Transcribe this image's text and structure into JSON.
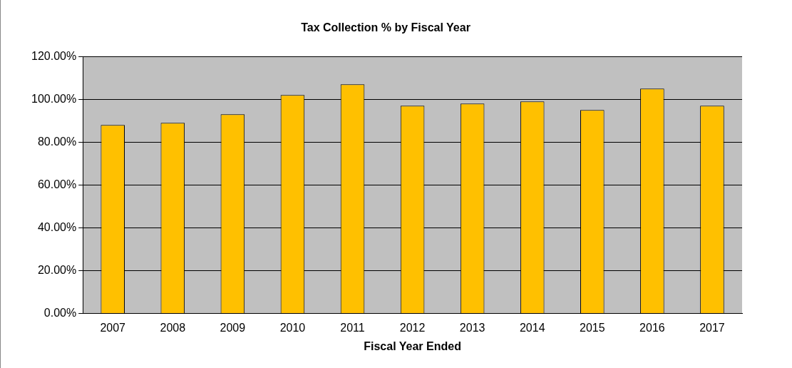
{
  "chart_data": {
    "type": "bar",
    "title": "Tax Collection % by Fiscal Year",
    "xlabel": "Fiscal Year Ended",
    "categories": [
      "2007",
      "2008",
      "2009",
      "2010",
      "2011",
      "2012",
      "2013",
      "2014",
      "2015",
      "2016",
      "2017"
    ],
    "values": [
      88,
      89,
      93,
      102,
      107,
      97,
      98,
      99,
      95,
      105,
      97
    ],
    "color": "#ffc000",
    "ylim": [
      0,
      120
    ],
    "yticks": [
      {
        "value": 0,
        "label": "0.00%"
      },
      {
        "value": 20,
        "label": "20.00%"
      },
      {
        "value": 40,
        "label": "40.00%"
      },
      {
        "value": 60,
        "label": "60.00%"
      },
      {
        "value": 80,
        "label": "80.00%"
      },
      {
        "value": 100,
        "label": "100.00%"
      },
      {
        "value": 120,
        "label": "120.00%"
      }
    ],
    "grid": "y"
  }
}
